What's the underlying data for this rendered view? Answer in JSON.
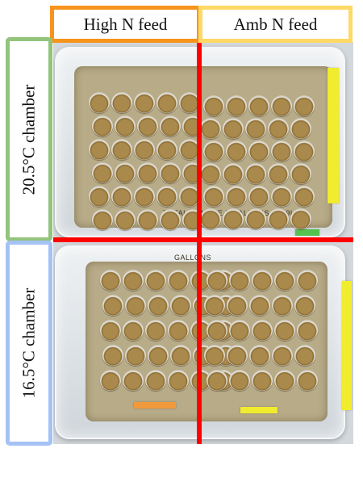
{
  "columns": {
    "high_n": {
      "label": "High N feed",
      "border_color": "#f7941d"
    },
    "amb_n": {
      "label": "Amb N feed",
      "border_color": "#ffd966"
    }
  },
  "rows": {
    "top": {
      "label": "20.5°C chamber",
      "border_color": "#92c47c"
    },
    "bottom": {
      "label": "16.5°C chamber",
      "border_color": "#a4c2f4"
    }
  },
  "divider_color": "#ff0000",
  "photo_text": {
    "top_carton": "TOTAL VOLUME 5 GALLONS (18.9L)",
    "bottom_carton": "GALLONS"
  }
}
